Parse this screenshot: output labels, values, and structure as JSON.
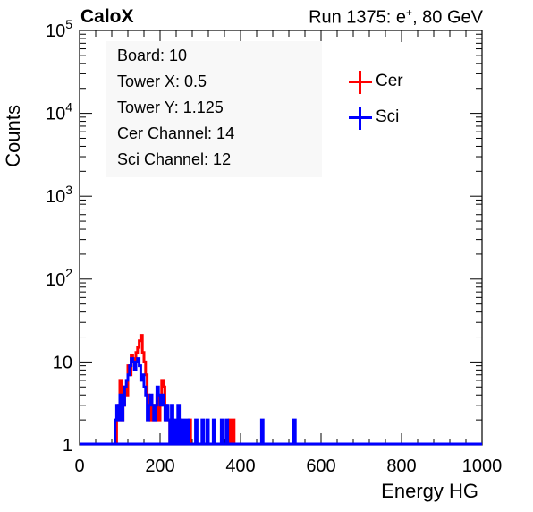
{
  "header": {
    "brand": "CaloX",
    "run_prefix": "Run 1375: e",
    "run_sup": "+",
    "run_suffix": ", 80 GeV"
  },
  "info_box": {
    "lines": [
      "Board: 10",
      "Tower X: 0.5",
      "Tower Y: 1.125",
      "Cer Channel: 14",
      "Sci Channel: 12"
    ]
  },
  "legend": [
    {
      "label": "Cer",
      "color": "#ff0000"
    },
    {
      "label": "Sci",
      "color": "#0000ff"
    }
  ],
  "chart_data": {
    "type": "histogram",
    "xlabel": "Energy HG",
    "ylabel": "Counts",
    "xlim": [
      0,
      1000
    ],
    "ylim": [
      1,
      100000
    ],
    "yscale": "log",
    "legend_position": "top-right",
    "x_ticks": [
      "0",
      "200",
      "400",
      "600",
      "800",
      "1000"
    ],
    "y_ticks": [
      {
        "value": 1,
        "base": "1",
        "exp": ""
      },
      {
        "value": 10,
        "base": "10",
        "exp": ""
      },
      {
        "value": 100,
        "base": "10",
        "exp": "2"
      },
      {
        "value": 1000,
        "base": "10",
        "exp": "3"
      },
      {
        "value": 10000,
        "base": "10",
        "exp": "4"
      },
      {
        "value": 100000,
        "base": "10",
        "exp": "5"
      }
    ],
    "series": [
      {
        "name": "Cer",
        "color": "#ff0000",
        "bins": [
          [
            92,
            2
          ],
          [
            96,
            3
          ],
          [
            100,
            6
          ],
          [
            104,
            2
          ],
          [
            108,
            3
          ],
          [
            112,
            5
          ],
          [
            116,
            4
          ],
          [
            120,
            9
          ],
          [
            124,
            7
          ],
          [
            128,
            12
          ],
          [
            132,
            11
          ],
          [
            136,
            9
          ],
          [
            140,
            13
          ],
          [
            144,
            15
          ],
          [
            148,
            18
          ],
          [
            152,
            21
          ],
          [
            156,
            13
          ],
          [
            160,
            10
          ],
          [
            164,
            7
          ],
          [
            168,
            4
          ],
          [
            172,
            3
          ],
          [
            176,
            2
          ],
          [
            180,
            3
          ],
          [
            184,
            2
          ],
          [
            188,
            3
          ],
          [
            192,
            4
          ],
          [
            196,
            2
          ],
          [
            200,
            3
          ],
          [
            204,
            6
          ],
          [
            208,
            5
          ],
          [
            212,
            3
          ],
          [
            216,
            2
          ],
          [
            220,
            2
          ],
          [
            228,
            2
          ],
          [
            248,
            2
          ],
          [
            272,
            2
          ],
          [
            372,
            2
          ],
          [
            380,
            2
          ]
        ]
      },
      {
        "name": "Sci",
        "color": "#0000ff",
        "bins": [
          [
            88,
            2
          ],
          [
            92,
            3
          ],
          [
            96,
            2
          ],
          [
            100,
            4
          ],
          [
            104,
            2
          ],
          [
            108,
            3
          ],
          [
            112,
            5
          ],
          [
            116,
            6
          ],
          [
            120,
            7
          ],
          [
            124,
            9
          ],
          [
            128,
            11
          ],
          [
            132,
            10
          ],
          [
            136,
            8
          ],
          [
            140,
            10
          ],
          [
            144,
            11
          ],
          [
            148,
            9
          ],
          [
            152,
            6
          ],
          [
            156,
            7
          ],
          [
            160,
            5
          ],
          [
            164,
            4
          ],
          [
            168,
            2
          ],
          [
            172,
            3
          ],
          [
            176,
            4
          ],
          [
            180,
            3
          ],
          [
            184,
            2
          ],
          [
            188,
            3
          ],
          [
            192,
            5
          ],
          [
            196,
            4
          ],
          [
            200,
            3
          ],
          [
            204,
            4
          ],
          [
            208,
            3
          ],
          [
            212,
            2
          ],
          [
            216,
            3
          ],
          [
            220,
            2
          ],
          [
            228,
            3
          ],
          [
            236,
            2
          ],
          [
            244,
            3
          ],
          [
            252,
            2
          ],
          [
            260,
            2
          ],
          [
            268,
            2
          ],
          [
            288,
            2
          ],
          [
            304,
            2
          ],
          [
            316,
            2
          ],
          [
            332,
            2
          ],
          [
            352,
            2
          ],
          [
            364,
            2
          ],
          [
            452,
            2
          ],
          [
            532,
            2
          ]
        ]
      }
    ]
  }
}
